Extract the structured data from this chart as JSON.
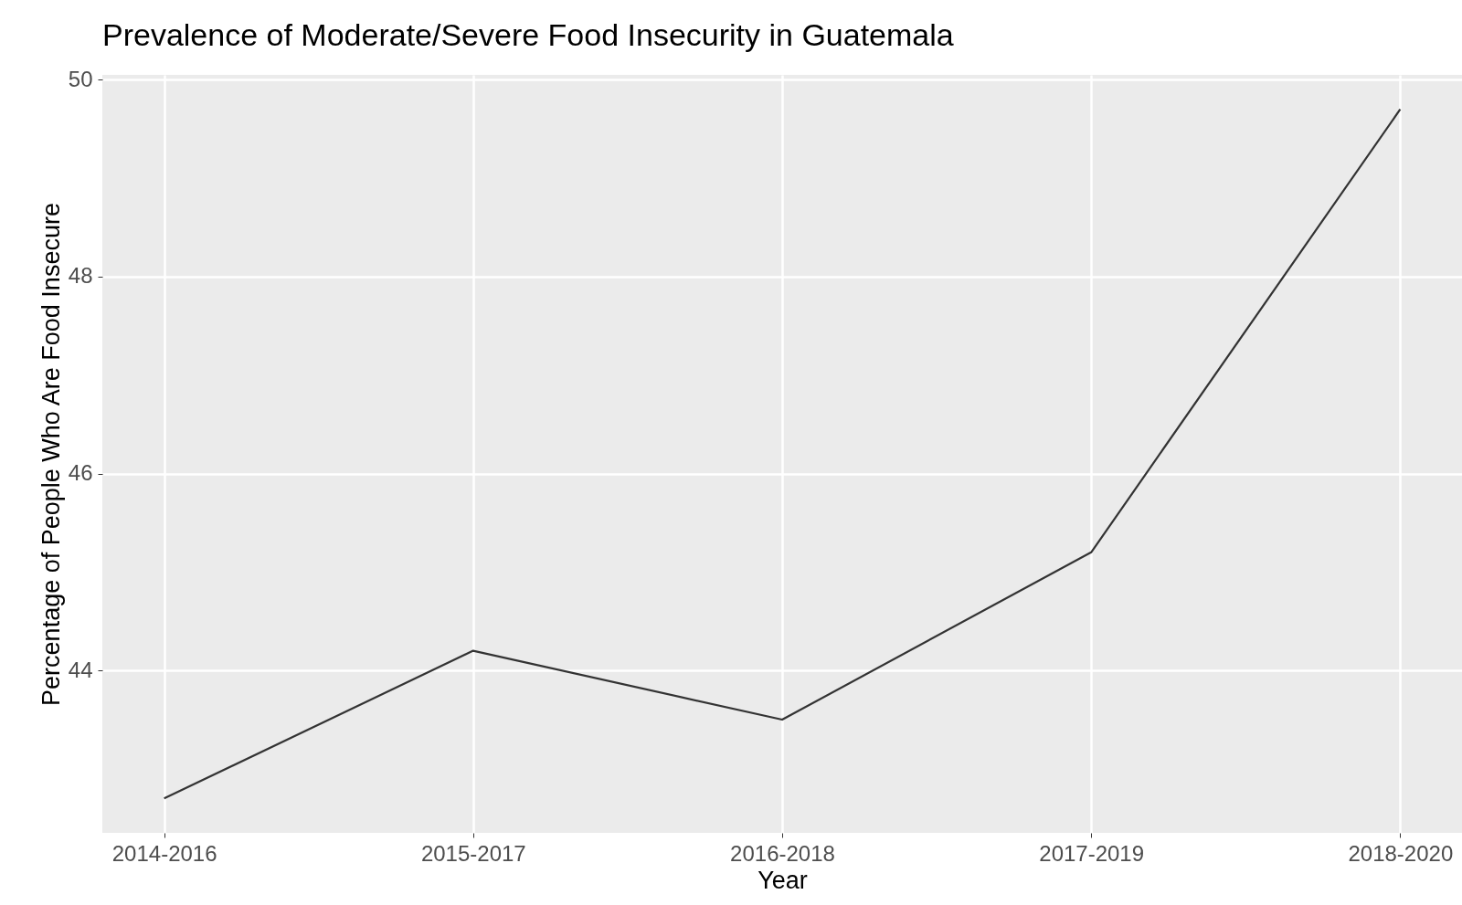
{
  "chart_data": {
    "type": "line",
    "title": "Prevalence of Moderate/Severe Food Insecurity in Guatemala",
    "xlabel": "Year",
    "ylabel": "Percentage of People Who Are Food Insecure",
    "categories": [
      "2014-2016",
      "2015-2017",
      "2016-2018",
      "2017-2019",
      "2018-2020"
    ],
    "series": [
      {
        "color": "#333333",
        "values": [
          42.7,
          44.2,
          43.5,
          45.2,
          49.7
        ]
      }
    ],
    "ylim": [
      42.35,
      50.05
    ],
    "yticks": [
      44,
      46,
      48,
      50
    ],
    "grid": true
  }
}
